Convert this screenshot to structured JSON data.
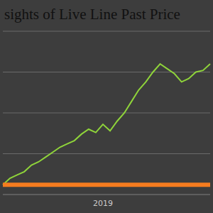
{
  "chart_data": {
    "type": "line",
    "title": "sights of Live Line Past Price",
    "categories": [
      null,
      null,
      null,
      null,
      null,
      null,
      null,
      null,
      null,
      null,
      null,
      null,
      null,
      null,
      "2019",
      null,
      null,
      null,
      null,
      null,
      null,
      null,
      null,
      null,
      null,
      null,
      null,
      null,
      null,
      null
    ],
    "series": [
      {
        "color": "#8fd43a",
        "values": [
          6,
          10,
          12,
          14,
          18,
          20,
          23,
          26,
          29,
          31,
          33,
          37,
          40,
          38,
          43,
          39,
          45,
          50,
          57,
          64,
          69,
          75,
          80,
          77,
          74,
          69,
          71,
          75,
          76,
          80
        ]
      },
      {
        "color": "#f57c1f",
        "values": [
          6,
          6,
          6,
          6,
          6,
          6,
          6,
          6,
          6,
          6,
          6,
          6,
          6,
          6,
          6,
          6,
          6,
          6,
          6,
          6,
          6,
          6,
          6,
          6,
          6,
          6,
          6,
          6,
          6,
          6
        ]
      }
    ],
    "ylim": [
      0,
      100
    ],
    "yticks": [
      0,
      25,
      50,
      75,
      100
    ],
    "grid": true,
    "tick_labels": "x"
  }
}
